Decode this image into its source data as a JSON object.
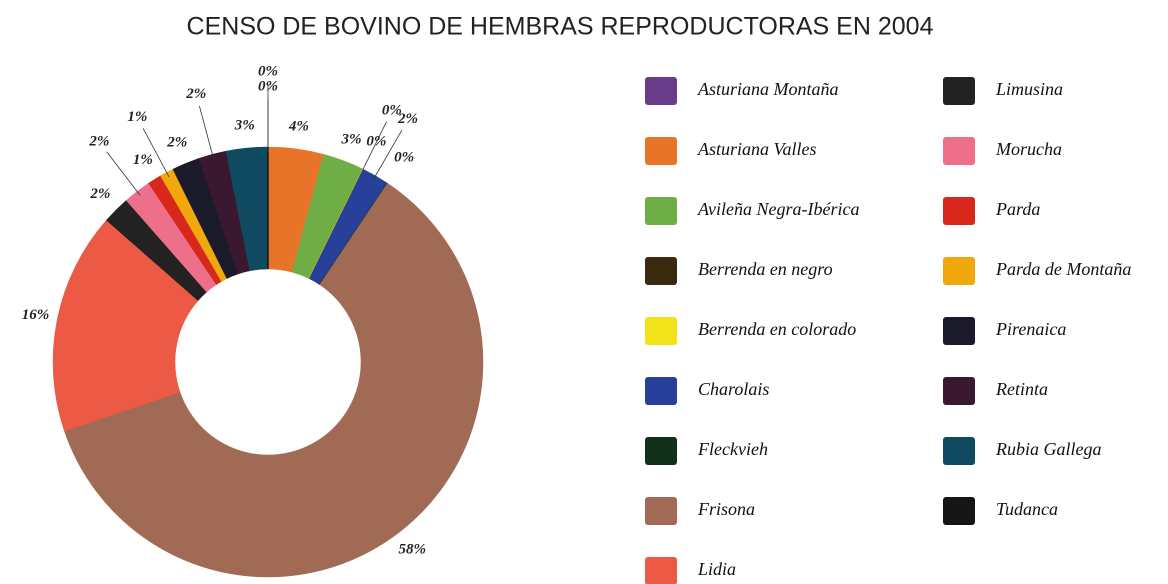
{
  "chart_data": {
    "type": "donut",
    "title": "CENSO DE BOVINO DE HEMBRAS REPRODUCTORAS EN 2004",
    "categories": [
      "Asturiana Montaña",
      "Asturiana Valles",
      "Avileña Negra-Ibérica",
      "Berrenda en negro",
      "Berrenda en colorado",
      "Charolais",
      "Fleckvieh",
      "Frisona",
      "Lidia",
      "Limusina",
      "Morucha",
      "Parda",
      "Parda de Montaña",
      "Pirenaica",
      "Retinta",
      "Rubia Gallega",
      "Tudanca"
    ],
    "values": [
      0,
      4,
      3,
      0,
      0,
      2,
      0,
      58,
      16,
      2,
      2,
      1,
      1,
      2,
      2,
      3,
      0
    ],
    "value_labels": [
      "0%",
      "4%",
      "3%",
      "0%",
      "0%",
      "2%",
      "0%",
      "58%",
      "16%",
      "2%",
      "2%",
      "1%",
      "1%",
      "2%",
      "2%",
      "3%",
      "0%"
    ],
    "colors": [
      "#6a3d8a",
      "#e8742a",
      "#6fae45",
      "#3a2a10",
      "#f1e21a",
      "#27409a",
      "#10301c",
      "#a06a55",
      "#ec5a45",
      "#222222",
      "#ee6f8a",
      "#d8281c",
      "#f0a80c",
      "#1a1a2a",
      "#3a1830",
      "#104a60",
      "#151515"
    ]
  }
}
